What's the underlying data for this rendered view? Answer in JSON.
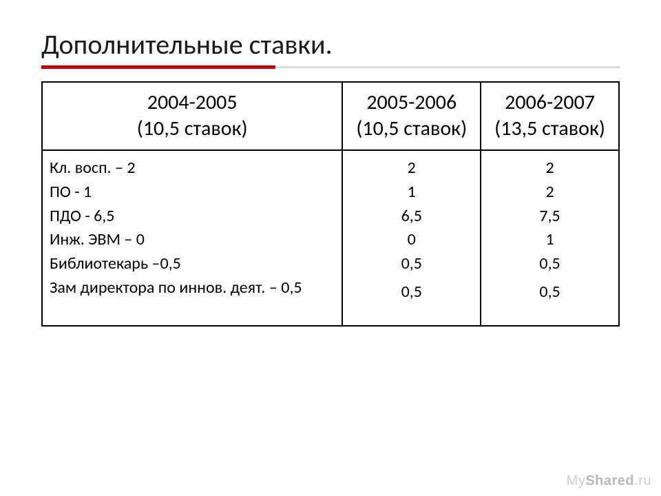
{
  "title": "Дополнительные ставки.",
  "accent_color": "#c00000",
  "header": {
    "cols": [
      {
        "year": "2004-2005",
        "count": "(10,5 ставок)"
      },
      {
        "year": "2005-2006",
        "count": "(10,5 ставок)"
      },
      {
        "year": "2006-2007",
        "count": "(13,5 ставок)"
      }
    ]
  },
  "body": {
    "col1": [
      "Кл. восп. – 2",
      "ПО           - 1",
      "ПДО         - 6,5",
      "Инж. ЭВМ – 0",
      "Библиотекарь –0,5",
      "Зам директора по иннов. деят. – 0,5"
    ],
    "col2": [
      "2",
      "1",
      "6,5",
      "0",
      "0,5",
      "",
      "0,5"
    ],
    "col3": [
      "2",
      "2",
      "7,5",
      "1",
      "0,5",
      "",
      "0,5"
    ]
  },
  "watermark": {
    "my": "My",
    "shared": "Shared",
    "ru": ".ru"
  }
}
